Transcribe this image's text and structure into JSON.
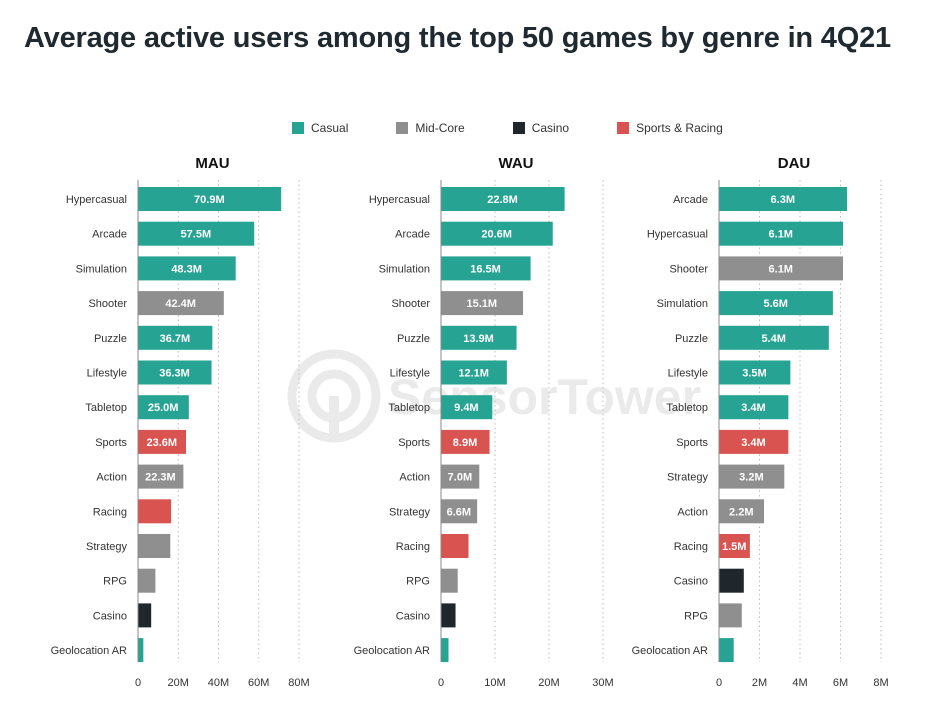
{
  "title": "Average active users among the top 50 games by genre in 4Q21",
  "legend": [
    {
      "label": "Casual",
      "color": "#26a392"
    },
    {
      "label": "Mid-Core",
      "color": "#8f8f8f"
    },
    {
      "label": "Casino",
      "color": "#1f272d"
    },
    {
      "label": "Sports & Racing",
      "color": "#d95350"
    }
  ],
  "watermark": "SensorTower",
  "chart_data": [
    {
      "type": "bar",
      "orientation": "horizontal",
      "title": "MAU",
      "xlim": [
        0,
        80
      ],
      "ticks": [
        0,
        20,
        40,
        60,
        80
      ],
      "tick_labels": [
        "0",
        "20M",
        "40M",
        "60M",
        "80M"
      ],
      "grid": true,
      "bars": [
        {
          "category": "Hypercasual",
          "value": 70.9,
          "label": "70.9M",
          "genre": "Casual"
        },
        {
          "category": "Arcade",
          "value": 57.5,
          "label": "57.5M",
          "genre": "Casual"
        },
        {
          "category": "Simulation",
          "value": 48.3,
          "label": "48.3M",
          "genre": "Casual"
        },
        {
          "category": "Shooter",
          "value": 42.4,
          "label": "42.4M",
          "genre": "Mid-Core"
        },
        {
          "category": "Puzzle",
          "value": 36.7,
          "label": "36.7M",
          "genre": "Casual"
        },
        {
          "category": "Lifestyle",
          "value": 36.3,
          "label": "36.3M",
          "genre": "Casual"
        },
        {
          "category": "Tabletop",
          "value": 25.0,
          "label": "25.0M",
          "genre": "Casual"
        },
        {
          "category": "Sports",
          "value": 23.6,
          "label": "23.6M",
          "genre": "Sports & Racing"
        },
        {
          "category": "Action",
          "value": 22.3,
          "label": "22.3M",
          "genre": "Mid-Core"
        },
        {
          "category": "Racing",
          "value": 16.2,
          "label": "",
          "genre": "Sports & Racing"
        },
        {
          "category": "Strategy",
          "value": 15.8,
          "label": "",
          "genre": "Mid-Core"
        },
        {
          "category": "RPG",
          "value": 8.4,
          "label": "",
          "genre": "Mid-Core"
        },
        {
          "category": "Casino",
          "value": 6.3,
          "label": "",
          "genre": "Casino"
        },
        {
          "category": "Geolocation AR",
          "value": 2.4,
          "label": "",
          "genre": "Casual"
        }
      ]
    },
    {
      "type": "bar",
      "orientation": "horizontal",
      "title": "WAU",
      "xlim": [
        0,
        30
      ],
      "ticks": [
        0,
        10,
        20,
        30
      ],
      "tick_labels": [
        "0",
        "10M",
        "20M",
        "30M"
      ],
      "grid": true,
      "bars": [
        {
          "category": "Hypercasual",
          "value": 22.8,
          "label": "22.8M",
          "genre": "Casual"
        },
        {
          "category": "Arcade",
          "value": 20.6,
          "label": "20.6M",
          "genre": "Casual"
        },
        {
          "category": "Simulation",
          "value": 16.5,
          "label": "16.5M",
          "genre": "Casual"
        },
        {
          "category": "Shooter",
          "value": 15.1,
          "label": "15.1M",
          "genre": "Mid-Core"
        },
        {
          "category": "Puzzle",
          "value": 13.9,
          "label": "13.9M",
          "genre": "Casual"
        },
        {
          "category": "Lifestyle",
          "value": 12.1,
          "label": "12.1M",
          "genre": "Casual"
        },
        {
          "category": "Tabletop",
          "value": 9.4,
          "label": "9.4M",
          "genre": "Casual"
        },
        {
          "category": "Sports",
          "value": 8.9,
          "label": "8.9M",
          "genre": "Sports & Racing"
        },
        {
          "category": "Action",
          "value": 7.0,
          "label": "7.0M",
          "genre": "Mid-Core"
        },
        {
          "category": "Strategy",
          "value": 6.6,
          "label": "6.6M",
          "genre": "Mid-Core"
        },
        {
          "category": "Racing",
          "value": 5.0,
          "label": "",
          "genre": "Sports & Racing"
        },
        {
          "category": "RPG",
          "value": 3.0,
          "label": "",
          "genre": "Mid-Core"
        },
        {
          "category": "Casino",
          "value": 2.6,
          "label": "",
          "genre": "Casino"
        },
        {
          "category": "Geolocation AR",
          "value": 1.3,
          "label": "",
          "genre": "Casual"
        }
      ]
    },
    {
      "type": "bar",
      "orientation": "horizontal",
      "title": "DAU",
      "xlim": [
        0,
        8
      ],
      "ticks": [
        0,
        2,
        4,
        6,
        8
      ],
      "tick_labels": [
        "0",
        "2M",
        "4M",
        "6M",
        "8M"
      ],
      "grid": true,
      "bars": [
        {
          "category": "Arcade",
          "value": 6.3,
          "label": "6.3M",
          "genre": "Casual"
        },
        {
          "category": "Hypercasual",
          "value": 6.1,
          "label": "6.1M",
          "genre": "Casual"
        },
        {
          "category": "Shooter",
          "value": 6.1,
          "label": "6.1M",
          "genre": "Mid-Core"
        },
        {
          "category": "Simulation",
          "value": 5.6,
          "label": "5.6M",
          "genre": "Casual"
        },
        {
          "category": "Puzzle",
          "value": 5.4,
          "label": "5.4M",
          "genre": "Casual"
        },
        {
          "category": "Lifestyle",
          "value": 3.5,
          "label": "3.5M",
          "genre": "Casual"
        },
        {
          "category": "Tabletop",
          "value": 3.4,
          "label": "3.4M",
          "genre": "Casual"
        },
        {
          "category": "Sports",
          "value": 3.4,
          "label": "3.4M",
          "genre": "Sports & Racing"
        },
        {
          "category": "Strategy",
          "value": 3.2,
          "label": "3.2M",
          "genre": "Mid-Core"
        },
        {
          "category": "Action",
          "value": 2.2,
          "label": "2.2M",
          "genre": "Mid-Core"
        },
        {
          "category": "Racing",
          "value": 1.5,
          "label": "1.5M",
          "genre": "Sports & Racing"
        },
        {
          "category": "Casino",
          "value": 1.2,
          "label": "",
          "genre": "Casino"
        },
        {
          "category": "RPG",
          "value": 1.1,
          "label": "",
          "genre": "Mid-Core"
        },
        {
          "category": "Geolocation AR",
          "value": 0.7,
          "label": "",
          "genre": "Casual"
        }
      ]
    }
  ]
}
